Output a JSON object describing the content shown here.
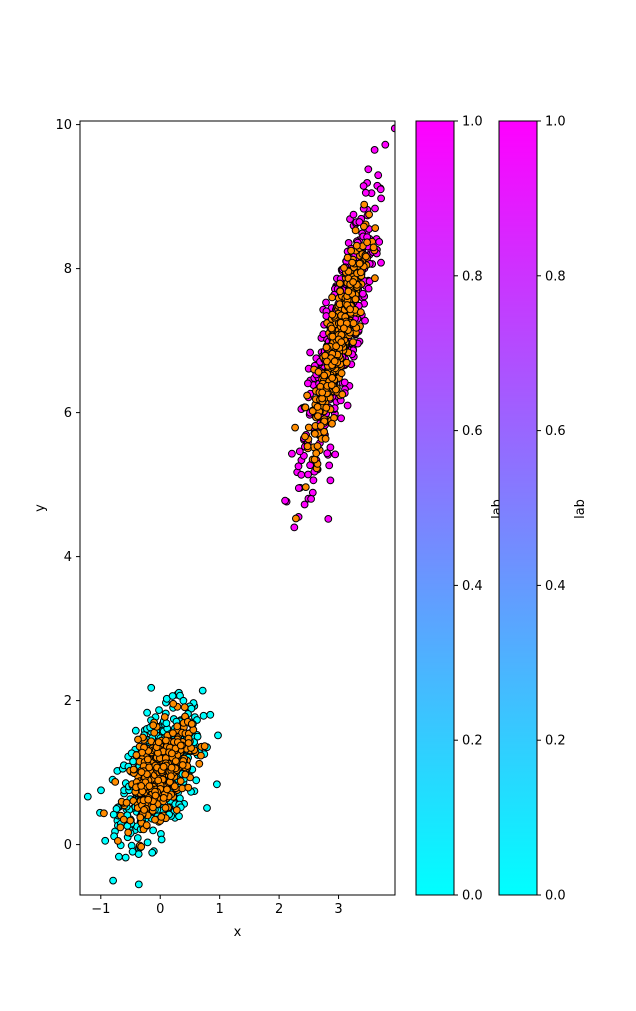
{
  "chart_data": {
    "type": "scatter",
    "title": "",
    "xlabel": "x",
    "ylabel": "y",
    "xlim": [
      -1.35,
      3.95
    ],
    "ylim": [
      -0.7,
      10.05
    ],
    "x_ticks": [
      -1,
      0,
      1,
      2,
      3
    ],
    "y_ticks": [
      0,
      2,
      4,
      6,
      8,
      10
    ],
    "grid": false,
    "point_edge_color": "#000000",
    "clusters": [
      {
        "center_x": 0.0,
        "center_y": 1.0,
        "spread_x": 0.35,
        "spread_y": 0.45,
        "rho": 0.5,
        "outer_color": "#00ffff",
        "inner_color": "#ff8c00"
      },
      {
        "center_x": 3.0,
        "center_y": 7.0,
        "spread_x": 0.3,
        "spread_y": 0.95,
        "rho": 0.85,
        "outer_color": "#ff00ff",
        "inner_color": "#ff8c00"
      }
    ],
    "colorbars": [
      {
        "label": "lab",
        "min": 0.0,
        "max": 1.0,
        "ticks": [
          "0.0",
          "0.2",
          "0.4",
          "0.6",
          "0.8",
          "1.0"
        ],
        "cmap": [
          "#00ffff",
          "#ff00ff"
        ]
      },
      {
        "label": "lab",
        "min": 0.0,
        "max": 1.0,
        "ticks": [
          "0.0",
          "0.2",
          "0.4",
          "0.6",
          "0.8",
          "1.0"
        ],
        "cmap": [
          "#00ffff",
          "#ff00ff"
        ]
      }
    ]
  }
}
